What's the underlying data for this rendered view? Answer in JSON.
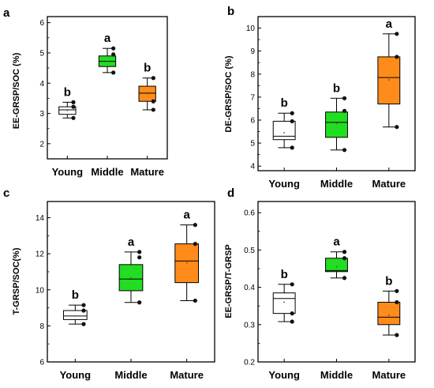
{
  "chart_data": [
    {
      "type": "box",
      "panel_label": "a",
      "ylabel": "EE-GRSP/SOC (%)",
      "ylim": [
        1.5,
        6.2
      ],
      "yticks": [
        2,
        3,
        4,
        5,
        6
      ],
      "categories": [
        "Young",
        "Middle",
        "Mature"
      ],
      "boxes": [
        {
          "category": "Young",
          "color": "#ffffff",
          "whisker_low": 2.85,
          "q1": 2.97,
          "median": 3.12,
          "q3": 3.22,
          "whisker_high": 3.37,
          "mean": 3.1,
          "outliers": [
            2.85,
            3.37
          ],
          "points": [
            2.85,
            3.22,
            3.37
          ],
          "significance": "b"
        },
        {
          "category": "Middle",
          "color": "#22dd22",
          "whisker_low": 4.35,
          "q1": 4.55,
          "median": 4.72,
          "q3": 4.9,
          "whisker_high": 5.15,
          "mean": 4.72,
          "outliers": [
            4.35,
            5.15
          ],
          "points": [
            4.35,
            4.95,
            5.15
          ],
          "significance": "a"
        },
        {
          "category": "Mature",
          "color": "#ff8c1a",
          "whisker_low": 3.12,
          "q1": 3.4,
          "median": 3.67,
          "q3": 3.9,
          "whisker_high": 4.17,
          "mean": 3.65,
          "outliers": [
            3.12,
            4.17
          ],
          "points": [
            3.12,
            3.4,
            4.17
          ],
          "significance": "b"
        }
      ]
    },
    {
      "type": "box",
      "panel_label": "b",
      "ylabel": "DE-GRSP/SOC (%)",
      "ylim": [
        3.8,
        10.5
      ],
      "yticks": [
        4,
        5,
        6,
        7,
        8,
        9,
        10
      ],
      "categories": [
        "Young",
        "Middle",
        "Mature"
      ],
      "boxes": [
        {
          "category": "Young",
          "color": "#ffffff",
          "whisker_low": 4.8,
          "q1": 5.15,
          "median": 5.3,
          "q3": 5.95,
          "whisker_high": 6.3,
          "mean": 5.45,
          "outliers": [
            4.8,
            6.3
          ],
          "points": [
            4.8,
            5.95,
            6.3
          ],
          "significance": "b"
        },
        {
          "category": "Middle",
          "color": "#22dd22",
          "whisker_low": 4.7,
          "q1": 5.25,
          "median": 5.9,
          "q3": 6.35,
          "whisker_high": 6.95,
          "mean": 5.85,
          "outliers": [
            4.7,
            6.95
          ],
          "points": [
            4.7,
            6.4,
            6.95
          ],
          "significance": "b"
        },
        {
          "category": "Mature",
          "color": "#ff8c1a",
          "whisker_low": 5.7,
          "q1": 6.7,
          "median": 7.85,
          "q3": 8.75,
          "whisker_high": 9.75,
          "mean": 7.75,
          "outliers": [
            5.7,
            9.75
          ],
          "points": [
            5.7,
            8.75,
            9.75
          ],
          "significance": "a"
        }
      ]
    },
    {
      "type": "box",
      "panel_label": "c",
      "ylabel": "T-GRSP/SOC(%)",
      "ylim": [
        6,
        14.9
      ],
      "yticks": [
        6,
        8,
        10,
        12,
        14
      ],
      "categories": [
        "Young",
        "Middle",
        "Mature"
      ],
      "boxes": [
        {
          "category": "Young",
          "color": "#ffffff",
          "whisker_low": 8.1,
          "q1": 8.35,
          "median": 8.55,
          "q3": 8.85,
          "whisker_high": 9.15,
          "mean": 8.55,
          "outliers": [
            8.1,
            9.15
          ],
          "points": [
            8.1,
            8.85,
            9.15
          ],
          "significance": "b"
        },
        {
          "category": "Middle",
          "color": "#22dd22",
          "whisker_low": 9.3,
          "q1": 9.95,
          "median": 10.6,
          "q3": 11.4,
          "whisker_high": 12.1,
          "mean": 10.65,
          "outliers": [
            9.3,
            12.1
          ],
          "points": [
            9.3,
            11.8,
            12.1
          ],
          "significance": "a"
        },
        {
          "category": "Mature",
          "color": "#ff8c1a",
          "whisker_low": 9.4,
          "q1": 10.4,
          "median": 11.6,
          "q3": 12.55,
          "whisker_high": 13.6,
          "mean": 11.5,
          "outliers": [
            9.4,
            13.6
          ],
          "points": [
            9.4,
            12.55,
            13.6
          ],
          "significance": "a"
        }
      ]
    },
    {
      "type": "box",
      "panel_label": "d",
      "ylabel": "EE-GRSP/T-GRSP",
      "ylim": [
        0.2,
        0.63
      ],
      "yticks": [
        0.2,
        0.3,
        0.4,
        0.5,
        0.6
      ],
      "categories": [
        "Young",
        "Middle",
        "Mature"
      ],
      "boxes": [
        {
          "category": "Young",
          "color": "#ffffff",
          "whisker_low": 0.308,
          "q1": 0.33,
          "median": 0.37,
          "q3": 0.385,
          "whisker_high": 0.408,
          "mean": 0.36,
          "outliers": [
            0.308,
            0.408
          ],
          "points": [
            0.308,
            0.33,
            0.408
          ],
          "significance": "b"
        },
        {
          "category": "Middle",
          "color": "#22dd22",
          "whisker_low": 0.425,
          "q1": 0.442,
          "median": 0.445,
          "q3": 0.478,
          "whisker_high": 0.495,
          "mean": 0.455,
          "outliers": [
            0.425,
            0.495
          ],
          "points": [
            0.425,
            0.478,
            0.495
          ],
          "significance": "a"
        },
        {
          "category": "Mature",
          "color": "#ff8c1a",
          "whisker_low": 0.272,
          "q1": 0.3,
          "median": 0.32,
          "q3": 0.36,
          "whisker_high": 0.39,
          "mean": 0.325,
          "outliers": [
            0.272,
            0.39
          ],
          "points": [
            0.272,
            0.36,
            0.39
          ],
          "significance": "b"
        }
      ]
    }
  ]
}
